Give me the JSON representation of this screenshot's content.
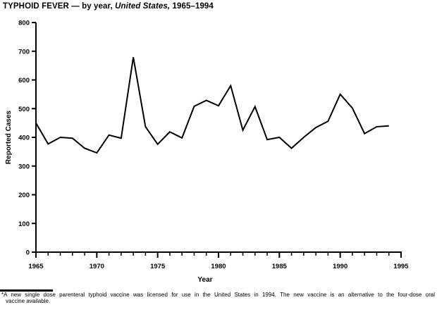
{
  "title": {
    "part1": "TYPHOID FEVER — by year, ",
    "part2_italic": "United States,",
    "part3": " 1965–1994"
  },
  "footnote": {
    "marker": "*",
    "line1": "A new single dose parenteral typhoid vaccine was licensed for use in the United States in 1994. The new vaccine is an alternative to the four-dose oral",
    "line2": "vaccine available."
  },
  "colors": {
    "line": "#000000",
    "axis": "#000000",
    "background": "#ffffff"
  },
  "chart_data": {
    "type": "line",
    "title": "TYPHOID FEVER — by year, United States, 1965–1994",
    "xlabel": "Year",
    "ylabel": "Reported Cases",
    "x": [
      1965,
      1966,
      1967,
      1968,
      1969,
      1970,
      1971,
      1972,
      1973,
      1974,
      1975,
      1976,
      1977,
      1978,
      1979,
      1980,
      1981,
      1982,
      1983,
      1984,
      1985,
      1986,
      1987,
      1988,
      1989,
      1990,
      1991,
      1992,
      1993,
      1994
    ],
    "values": [
      450,
      377,
      400,
      397,
      362,
      346,
      408,
      397,
      679,
      437,
      376,
      419,
      398,
      508,
      529,
      510,
      580,
      425,
      507,
      392,
      400,
      362,
      400,
      434,
      456,
      550,
      502,
      413,
      437,
      440
    ],
    "xlim": [
      1965,
      1995
    ],
    "ylim": [
      0,
      800
    ],
    "ytick_step": 100,
    "xtick_major_step": 5,
    "xtick_minor_step": 1,
    "x_major_ticks": [
      1965,
      1970,
      1975,
      1980,
      1985,
      1990,
      1995
    ],
    "grid": false,
    "legend": "none",
    "line_color": "#000000"
  }
}
